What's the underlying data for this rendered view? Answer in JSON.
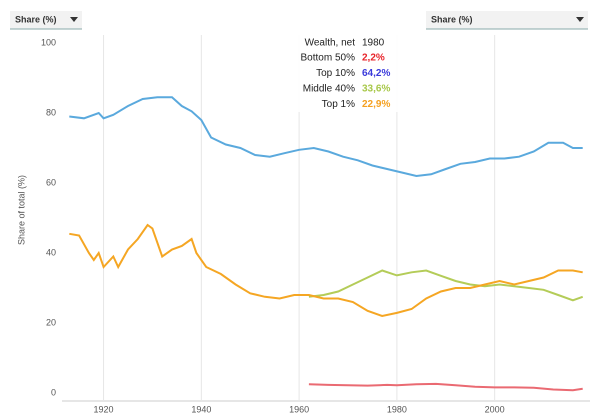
{
  "chart_data": {
    "type": "line",
    "controls": [
      "Share (%)",
      "Share (%)"
    ],
    "y_label": "Share of total (%)",
    "tooltip": {
      "title": "Wealth, net",
      "year": 1980
    },
    "xlim": [
      1911.5,
      2019.5
    ],
    "xticks": [
      1920,
      1940,
      1960,
      1980,
      2000
    ],
    "ylim": [
      0,
      100
    ],
    "yticks": [
      0,
      20,
      40,
      60,
      80,
      100
    ],
    "grid": true,
    "series": [
      {
        "name": "Bottom 50%",
        "value_label": "2,2%",
        "color": "#ea6a72",
        "label_color": "#e8232a",
        "x": [
          1962,
          1966,
          1970,
          1974,
          1978,
          1980,
          1984,
          1988,
          1992,
          1996,
          2000,
          2004,
          2008,
          2012,
          2016,
          2018
        ],
        "values": [
          2.5,
          2.3,
          2.2,
          2.1,
          2.3,
          2.2,
          2.5,
          2.6,
          2.2,
          1.8,
          1.6,
          1.6,
          1.5,
          1.0,
          0.8,
          1.2
        ]
      },
      {
        "name": "Top 10%",
        "value_label": "64,2%",
        "color": "#5aa9dd",
        "label_color": "#3a3adb",
        "x": [
          1913,
          1916,
          1919,
          1920,
          1922,
          1925,
          1928,
          1931,
          1934,
          1936,
          1938,
          1940,
          1942,
          1945,
          1948,
          1951,
          1954,
          1957,
          1960,
          1963,
          1966,
          1969,
          1972,
          1975,
          1978,
          1981,
          1984,
          1987,
          1990,
          1993,
          1996,
          1999,
          2002,
          2005,
          2008,
          2011,
          2014,
          2016,
          2018
        ],
        "values": [
          79,
          78.5,
          80,
          78.5,
          79.5,
          82,
          84,
          84.5,
          84.5,
          82,
          80.5,
          78,
          73,
          71,
          70,
          68,
          67.5,
          68.5,
          69.5,
          70,
          69,
          67.5,
          66.5,
          65,
          64,
          63,
          62,
          62.5,
          64,
          65.5,
          66,
          67,
          67,
          67.5,
          69,
          71.5,
          71.5,
          70,
          70
        ]
      },
      {
        "name": "Middle 40%",
        "value_label": "33,6%",
        "color": "#b4cc58",
        "label_color": "#a8c84a",
        "x": [
          1962,
          1965,
          1968,
          1971,
          1974,
          1977,
          1980,
          1983,
          1986,
          1989,
          1992,
          1995,
          1998,
          2001,
          2004,
          2007,
          2010,
          2013,
          2016,
          2018
        ],
        "values": [
          27.5,
          28,
          29,
          31,
          33,
          35,
          33.6,
          34.5,
          35,
          33.5,
          32,
          31,
          30.5,
          31,
          30.5,
          30,
          29.5,
          28,
          26.5,
          27.5
        ]
      },
      {
        "name": "Top 1%",
        "value_label": "22,9%",
        "color": "#f5a623",
        "label_color": "#f5a020",
        "x": [
          1913,
          1915,
          1917,
          1918,
          1919,
          1920,
          1922,
          1923,
          1925,
          1927,
          1929,
          1930,
          1932,
          1934,
          1936,
          1938,
          1939,
          1941,
          1944,
          1947,
          1950,
          1953,
          1956,
          1959,
          1962,
          1965,
          1968,
          1971,
          1974,
          1977,
          1980,
          1983,
          1986,
          1989,
          1992,
          1995,
          1998,
          2001,
          2004,
          2007,
          2010,
          2013,
          2016,
          2018
        ],
        "values": [
          45.5,
          45,
          40,
          38,
          40,
          36,
          39,
          36,
          41,
          44,
          48,
          47,
          39,
          41,
          42,
          44,
          40,
          36,
          34,
          31,
          28.5,
          27.5,
          27,
          28,
          28,
          27,
          27,
          26,
          23.5,
          22,
          22.9,
          24,
          27,
          29,
          30,
          30,
          31,
          32,
          31,
          32,
          33,
          35,
          35,
          34.5
        ]
      }
    ]
  }
}
